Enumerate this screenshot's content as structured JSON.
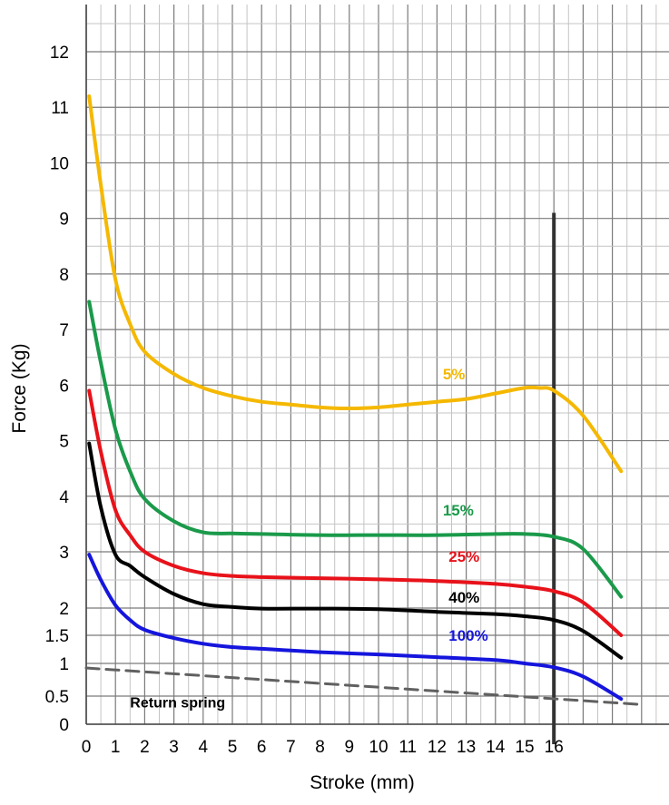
{
  "chart_data": {
    "type": "line",
    "title": "",
    "xlabel": "Stroke (mm)",
    "ylabel": "Force (Kg)",
    "x_ticks": [
      "0",
      "1",
      "2",
      "3",
      "4",
      "5",
      "6",
      "7",
      "8",
      "9",
      "10",
      "11",
      "12",
      "13",
      "14",
      "15",
      "16"
    ],
    "y_ticks": [
      "0",
      "0.5",
      "1",
      "1.5",
      "2",
      "3",
      "4",
      "5",
      "6",
      "7",
      "8",
      "9",
      "10",
      "11",
      "12"
    ],
    "grid": true,
    "series": [
      {
        "name": "5%",
        "color": "#f5b800",
        "x": [
          0.1,
          0.5,
          1,
          1.5,
          2,
          3,
          4,
          5,
          6,
          7,
          8,
          9,
          10,
          11,
          12,
          13,
          14,
          15,
          15.5,
          16,
          17,
          18.3
        ],
        "y": [
          11.2,
          9.6,
          7.9,
          7.1,
          6.6,
          6.2,
          5.95,
          5.8,
          5.7,
          5.65,
          5.6,
          5.58,
          5.6,
          5.65,
          5.7,
          5.75,
          5.85,
          5.95,
          5.95,
          5.9,
          5.45,
          4.45
        ]
      },
      {
        "name": "15%",
        "color": "#1a9a4a",
        "x": [
          0.1,
          0.5,
          1,
          1.5,
          2,
          3,
          4,
          5,
          6,
          8,
          10,
          12,
          14,
          15,
          16,
          17,
          18.3
        ],
        "y": [
          7.5,
          6.4,
          5.2,
          4.45,
          3.95,
          3.55,
          3.35,
          3.33,
          3.32,
          3.3,
          3.3,
          3.3,
          3.32,
          3.32,
          3.27,
          3.05,
          2.2
        ]
      },
      {
        "name": "25%",
        "color": "#e8121a",
        "x": [
          0.1,
          0.5,
          1,
          1.5,
          2,
          3,
          4,
          5,
          6,
          8,
          10,
          12,
          14,
          15,
          16,
          17,
          18.3
        ],
        "y": [
          5.9,
          4.8,
          3.75,
          3.3,
          3.0,
          2.75,
          2.62,
          2.57,
          2.55,
          2.53,
          2.51,
          2.48,
          2.43,
          2.38,
          2.3,
          2.1,
          1.5
        ]
      },
      {
        "name": "40%",
        "color": "#000000",
        "x": [
          0.1,
          0.5,
          1,
          1.5,
          2,
          3,
          4,
          5,
          6,
          8,
          10,
          12,
          14,
          15,
          16,
          17,
          18.3
        ],
        "y": [
          4.95,
          3.8,
          2.95,
          2.75,
          2.55,
          2.25,
          2.07,
          2.02,
          1.99,
          1.99,
          1.98,
          1.93,
          1.89,
          1.85,
          1.78,
          1.58,
          1.1
        ]
      },
      {
        "name": "100%",
        "color": "#1515dd",
        "x": [
          0.1,
          0.5,
          1,
          1.5,
          2,
          3,
          4,
          5,
          6,
          8,
          10,
          12,
          14,
          15,
          16,
          17,
          18.3
        ],
        "y": [
          2.95,
          2.5,
          2.05,
          1.78,
          1.6,
          1.45,
          1.35,
          1.29,
          1.26,
          1.2,
          1.16,
          1.11,
          1.06,
          1.0,
          0.94,
          0.8,
          0.45
        ]
      },
      {
        "name": "Return spring",
        "color": "#606060",
        "dash": true,
        "x": [
          0,
          19
        ],
        "y": [
          0.93,
          0.35
        ]
      }
    ],
    "annotations": [
      {
        "text": "5%",
        "x": 12.2,
        "y": 6.1,
        "color": "#f5b800"
      },
      {
        "text": "15%",
        "x": 12.2,
        "y": 3.65,
        "color": "#1a9a4a"
      },
      {
        "text": "25%",
        "x": 12.4,
        "y": 2.82,
        "color": "#e8121a"
      },
      {
        "text": "40%",
        "x": 12.4,
        "y": 2.1,
        "color": "#000000"
      },
      {
        "text": "100%",
        "x": 12.4,
        "y": 1.4,
        "color": "#1515dd"
      },
      {
        "text": "Return spring",
        "x": 1.5,
        "y": 0.3,
        "color": "#000000"
      }
    ],
    "reference_line": {
      "x": 16,
      "y_from": 0,
      "y_to": 9.1,
      "color": "#333333"
    }
  }
}
